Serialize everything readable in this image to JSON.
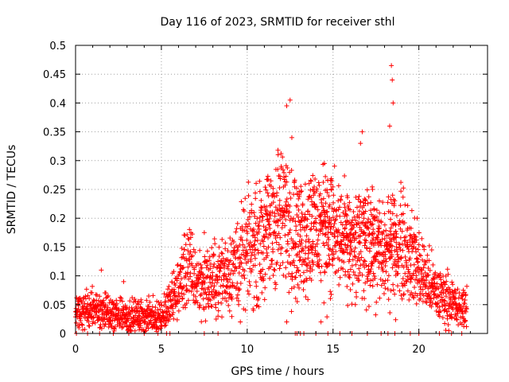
{
  "chart_data": {
    "type": "scatter",
    "title": "Day 116 of 2023, SRMTID for receiver sthl",
    "xlabel": "GPS time / hours",
    "ylabel": "SRMTID / TECUs",
    "xlim": [
      0,
      24
    ],
    "ylim": [
      0,
      0.5
    ],
    "grid": true,
    "marker": "+",
    "color": "#ff0000",
    "x_ticks": [
      0,
      5,
      10,
      15,
      20
    ],
    "x_tick_labels": [
      "0",
      "5",
      "10",
      "15",
      "20"
    ],
    "y_ticks": [
      0,
      0.05,
      0.1,
      0.15,
      0.2,
      0.25,
      0.3,
      0.35,
      0.4,
      0.45,
      0.5
    ],
    "y_tick_labels": [
      "0",
      "0.05",
      "0.1",
      "0.15",
      "0.2",
      "0.25",
      "0.3",
      "0.35",
      "0.4",
      "0.45",
      "0.5"
    ],
    "series": [
      {
        "name": "SRMTID",
        "profile_hours": [
          0,
          1,
          2,
          3,
          4,
          5,
          5.5,
          6,
          6.5,
          7,
          8,
          9,
          10,
          11,
          12,
          12.5,
          13,
          14,
          15,
          16,
          17,
          18,
          19,
          20,
          21,
          21.8,
          22.3,
          22.8
        ],
        "profile_values": [
          0.04,
          0.04,
          0.035,
          0.03,
          0.03,
          0.03,
          0.05,
          0.08,
          0.12,
          0.09,
          0.09,
          0.11,
          0.14,
          0.16,
          0.2,
          0.19,
          0.15,
          0.18,
          0.17,
          0.14,
          0.15,
          0.13,
          0.15,
          0.11,
          0.07,
          0.06,
          0.04,
          0.05
        ],
        "peaks": [
          {
            "x": 12.5,
            "y": 0.405
          },
          {
            "x": 12.3,
            "y": 0.395
          },
          {
            "x": 12.6,
            "y": 0.34
          },
          {
            "x": 11.8,
            "y": 0.31
          },
          {
            "x": 14.5,
            "y": 0.295
          },
          {
            "x": 16.7,
            "y": 0.35
          },
          {
            "x": 16.6,
            "y": 0.33
          },
          {
            "x": 18.4,
            "y": 0.465
          },
          {
            "x": 18.45,
            "y": 0.44
          },
          {
            "x": 18.5,
            "y": 0.4
          },
          {
            "x": 18.3,
            "y": 0.36
          },
          {
            "x": 17.3,
            "y": 0.25
          },
          {
            "x": 19.9,
            "y": 0.2
          },
          {
            "x": 1.5,
            "y": 0.11
          },
          {
            "x": 2.8,
            "y": 0.09
          },
          {
            "x": 7.5,
            "y": 0.175
          },
          {
            "x": 9.6,
            "y": 0.02
          },
          {
            "x": 16.3,
            "y": 0.05
          },
          {
            "x": 8.3,
            "y": 0.03
          },
          {
            "x": 12.3,
            "y": 0.02
          },
          {
            "x": 14.3,
            "y": 0.02
          }
        ],
        "zero_hours": [
          0.05,
          0.7,
          1.4,
          2.2,
          3.1,
          4.0,
          4.8,
          5.3,
          5.5,
          7.5,
          8.3,
          12.8,
          12.9,
          13.1,
          13.3,
          14.0,
          14.7,
          15.4,
          16.1,
          17.0,
          17.8,
          18.2,
          18.6,
          19.5,
          20.0,
          21.2,
          21.9,
          22.5
        ]
      }
    ]
  }
}
